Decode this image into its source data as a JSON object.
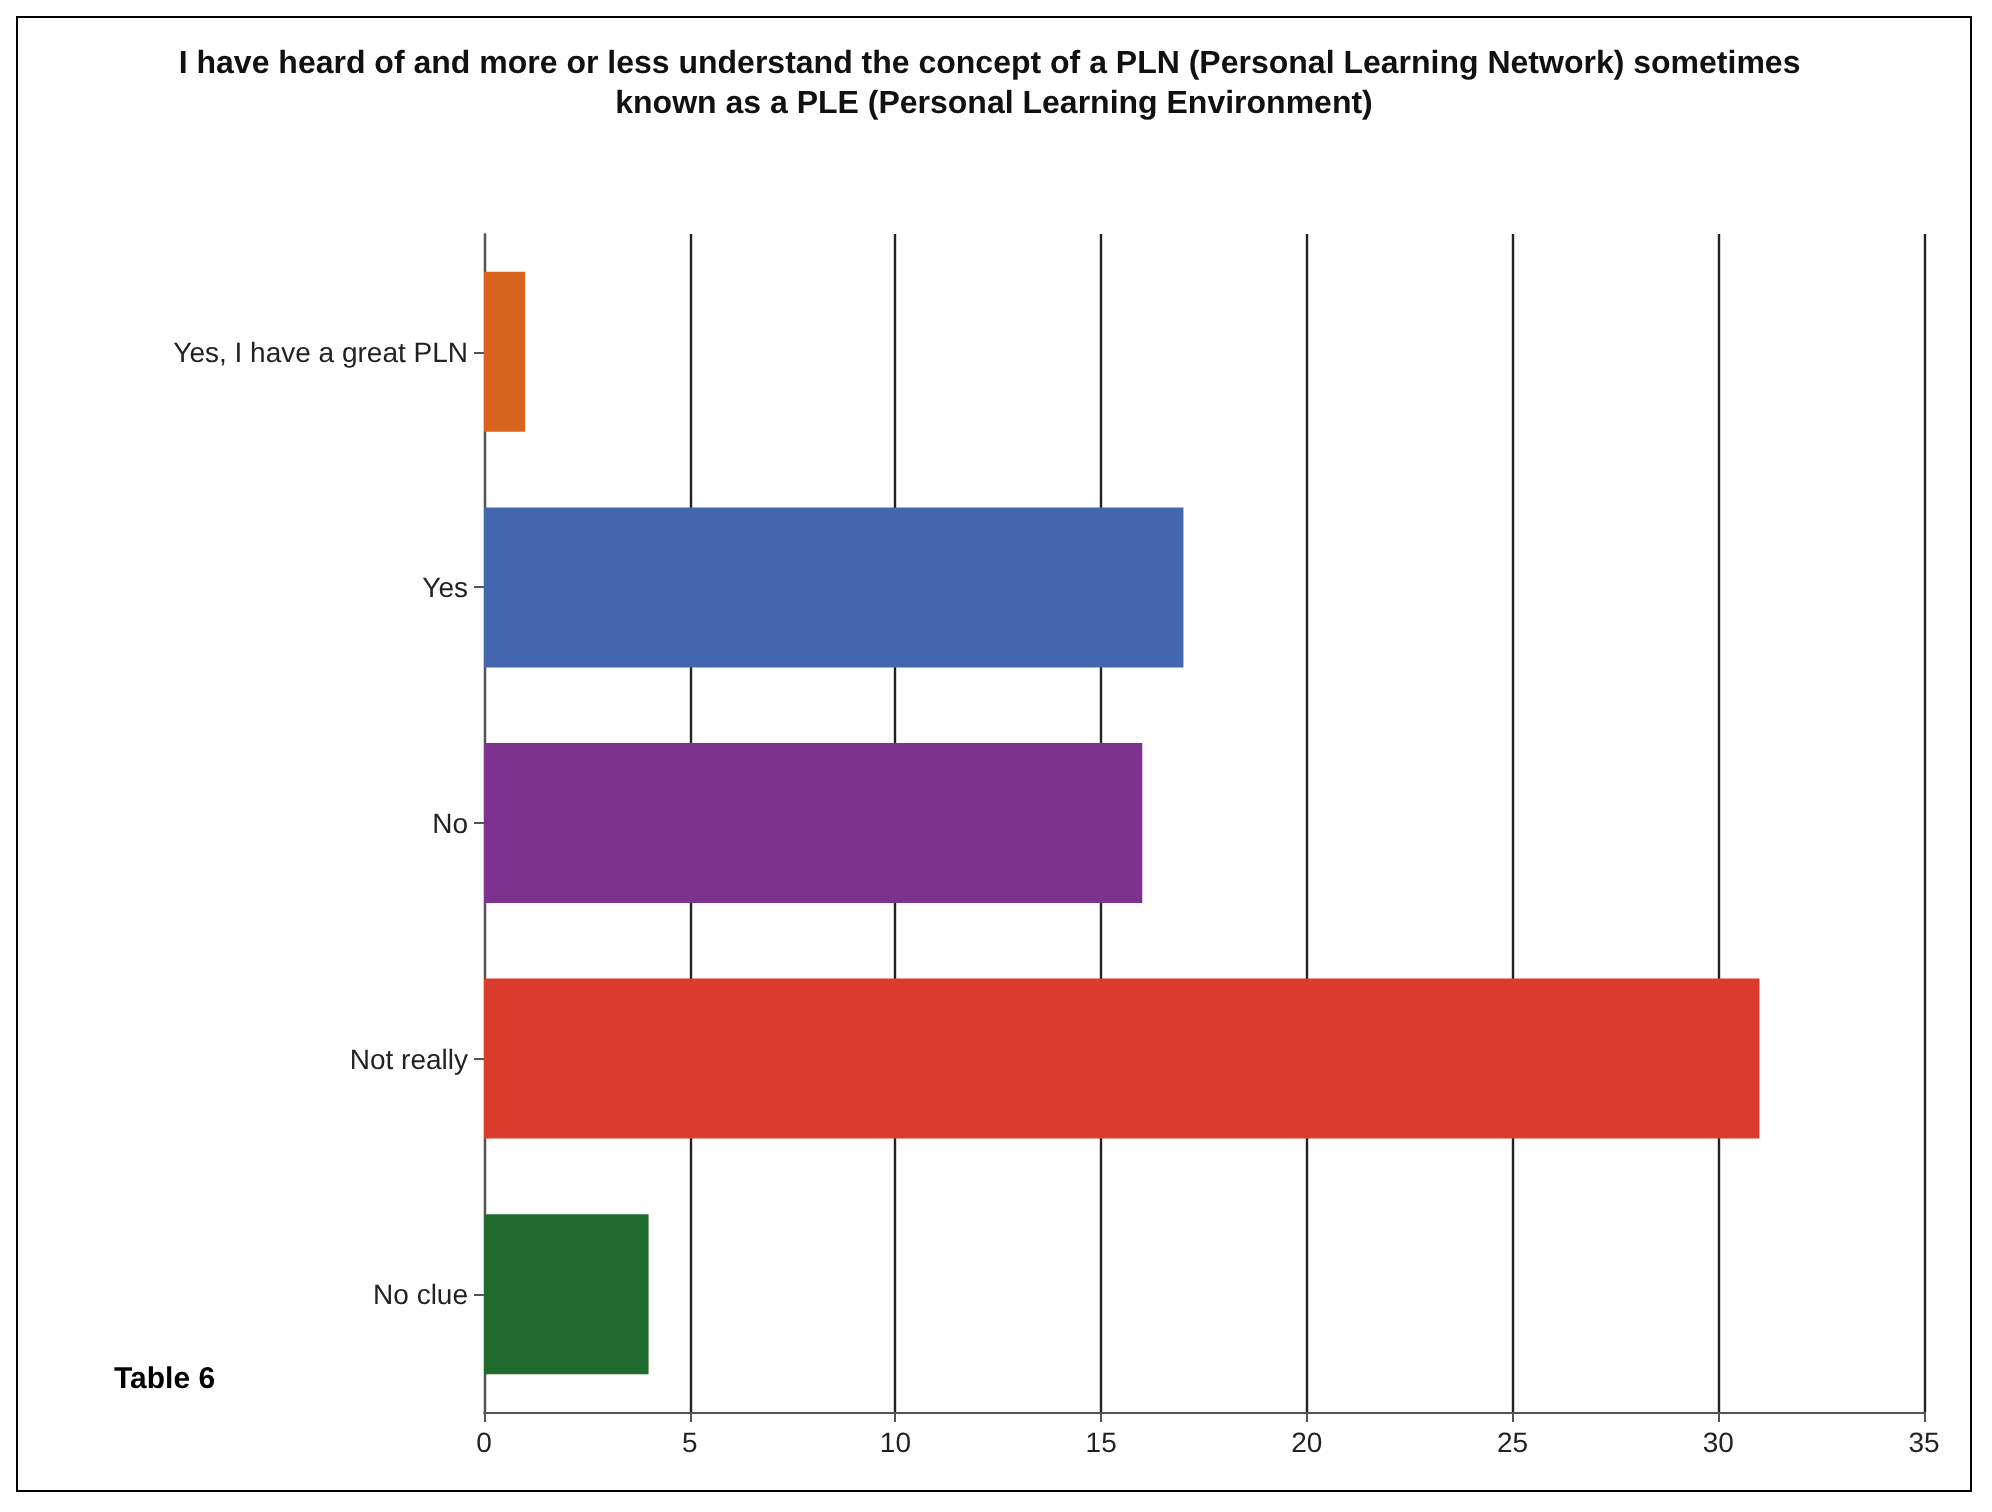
{
  "chart_data": {
    "type": "bar",
    "orientation": "horizontal",
    "title": "I have heard of and more or less understand the concept of a PLN (Personal Learning Network) sometimes known as a PLE (Personal Learning Environment)",
    "categories": [
      "Yes, I have a great PLN",
      "Yes",
      "No",
      "Not really",
      "No clue"
    ],
    "values": [
      1,
      17,
      16,
      31,
      4
    ],
    "colors": [
      "#d9641f",
      "#4466b0",
      "#7d3290",
      "#dc3c2d",
      "#1f6b2e"
    ],
    "xlim": [
      0,
      35
    ],
    "xticks": [
      0,
      5,
      10,
      15,
      20,
      25,
      30,
      35
    ],
    "grid": "x",
    "annotations": [
      "Table 6"
    ]
  }
}
